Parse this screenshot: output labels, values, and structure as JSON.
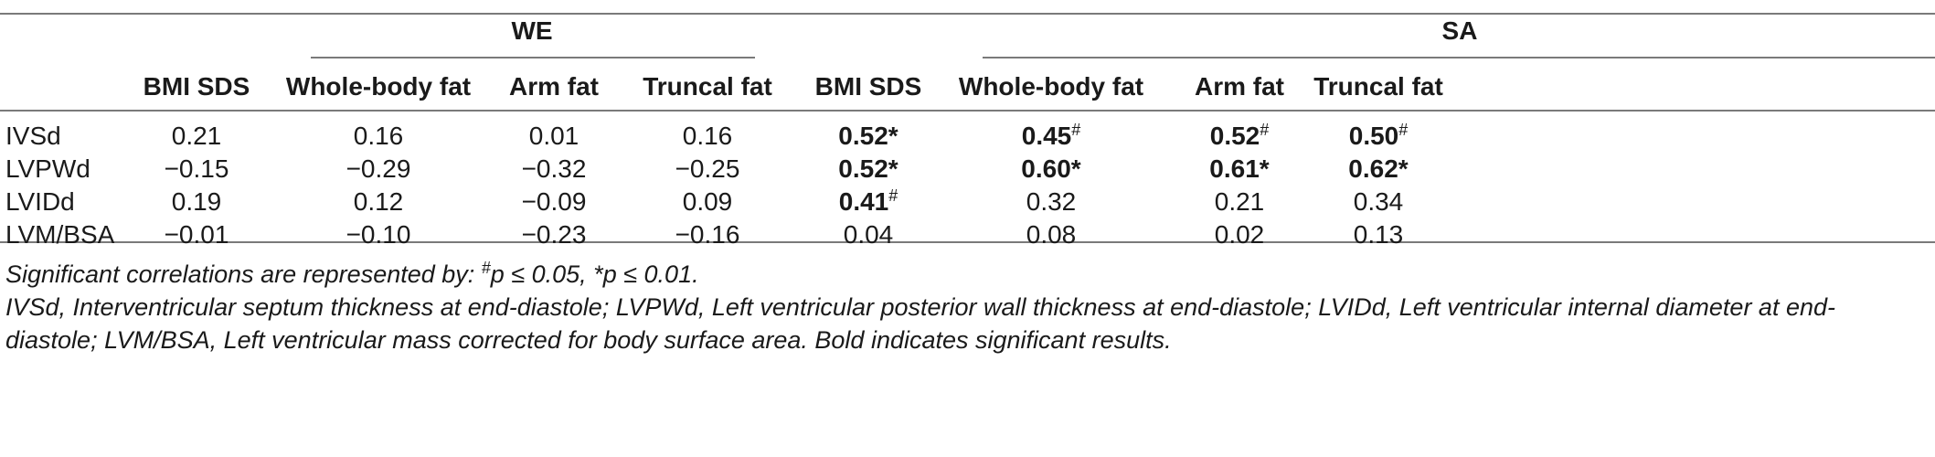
{
  "groups": [
    {
      "label": "WE"
    },
    {
      "label": "SA"
    }
  ],
  "columns": [
    "BMI SDS",
    "Whole-body fat",
    "Arm fat",
    "Truncal fat",
    "BMI SDS",
    "Whole-body fat",
    "Arm fat",
    "Truncal fat"
  ],
  "rows": [
    {
      "label": "IVSd",
      "cells": [
        {
          "v": "0.21",
          "b": false,
          "sup": ""
        },
        {
          "v": "0.16",
          "b": false,
          "sup": ""
        },
        {
          "v": "0.01",
          "b": false,
          "sup": ""
        },
        {
          "v": "0.16",
          "b": false,
          "sup": ""
        },
        {
          "v": "0.52*",
          "b": true,
          "sup": ""
        },
        {
          "v": "0.45",
          "b": true,
          "sup": "#"
        },
        {
          "v": "0.52",
          "b": true,
          "sup": "#"
        },
        {
          "v": "0.50",
          "b": true,
          "sup": "#"
        }
      ]
    },
    {
      "label": "LVPWd",
      "cells": [
        {
          "v": "−0.15",
          "b": false,
          "sup": ""
        },
        {
          "v": "−0.29",
          "b": false,
          "sup": ""
        },
        {
          "v": "−0.32",
          "b": false,
          "sup": ""
        },
        {
          "v": "−0.25",
          "b": false,
          "sup": ""
        },
        {
          "v": "0.52*",
          "b": true,
          "sup": ""
        },
        {
          "v": "0.60*",
          "b": true,
          "sup": ""
        },
        {
          "v": "0.61*",
          "b": true,
          "sup": ""
        },
        {
          "v": "0.62*",
          "b": true,
          "sup": ""
        }
      ]
    },
    {
      "label": "LVIDd",
      "cells": [
        {
          "v": "0.19",
          "b": false,
          "sup": ""
        },
        {
          "v": "0.12",
          "b": false,
          "sup": ""
        },
        {
          "v": "−0.09",
          "b": false,
          "sup": ""
        },
        {
          "v": "0.09",
          "b": false,
          "sup": ""
        },
        {
          "v": "0.41",
          "b": true,
          "sup": "#"
        },
        {
          "v": "0.32",
          "b": false,
          "sup": ""
        },
        {
          "v": "0.21",
          "b": false,
          "sup": ""
        },
        {
          "v": "0.34",
          "b": false,
          "sup": ""
        }
      ]
    },
    {
      "label": "LVM/BSA",
      "cells": [
        {
          "v": "−0.01",
          "b": false,
          "sup": ""
        },
        {
          "v": "−0.10",
          "b": false,
          "sup": ""
        },
        {
          "v": "−0.23",
          "b": false,
          "sup": ""
        },
        {
          "v": "−0.16",
          "b": false,
          "sup": ""
        },
        {
          "v": "0.04",
          "b": false,
          "sup": ""
        },
        {
          "v": "0.08",
          "b": false,
          "sup": ""
        },
        {
          "v": "0.02",
          "b": false,
          "sup": ""
        },
        {
          "v": "0.13",
          "b": false,
          "sup": ""
        }
      ]
    }
  ],
  "footnote1": {
    "prefix": "Significant correlations are represented by: ",
    "sup": "#",
    "suffix": "p ≤ 0.05, *p ≤ 0.01."
  },
  "footnote2": "IVSd, Interventricular septum thickness at end-diastole; LVPWd, Left ventricular posterior wall thickness at end-diastole; LVIDd, Left ventricular internal diameter at end-diastole; LVM/BSA, Left ventricular mass corrected for body surface area. Bold indicates significant results."
}
